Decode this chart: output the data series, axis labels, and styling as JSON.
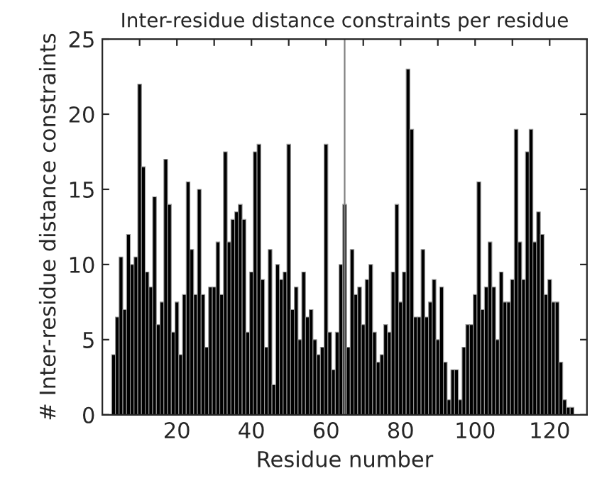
{
  "chart_data": {
    "type": "bar",
    "title": "Inter-residue distance constraints per residue",
    "xlabel": "Residue number",
    "ylabel": "# Inter-residue distance constraints",
    "x": [
      3,
      4,
      5,
      6,
      7,
      8,
      9,
      10,
      11,
      12,
      13,
      14,
      15,
      16,
      17,
      18,
      19,
      20,
      21,
      22,
      23,
      24,
      25,
      26,
      27,
      28,
      29,
      30,
      31,
      32,
      33,
      34,
      35,
      36,
      37,
      38,
      39,
      40,
      41,
      42,
      43,
      44,
      45,
      46,
      47,
      48,
      49,
      50,
      51,
      52,
      53,
      54,
      55,
      56,
      57,
      58,
      59,
      60,
      61,
      62,
      63,
      64,
      65,
      66,
      67,
      68,
      69,
      70,
      71,
      72,
      73,
      74,
      75,
      76,
      77,
      78,
      79,
      80,
      81,
      82,
      83,
      84,
      85,
      86,
      87,
      88,
      89,
      90,
      91,
      92,
      93,
      94,
      95,
      96,
      97,
      98,
      99,
      100,
      101,
      102,
      103,
      104,
      105,
      106,
      107,
      108,
      109,
      110,
      111,
      112,
      113,
      114,
      115,
      116,
      117,
      118,
      119,
      120,
      121,
      122,
      123,
      124,
      125,
      126
    ],
    "values": [
      4.0,
      6.5,
      10.5,
      7.0,
      12.0,
      10.0,
      10.5,
      22.0,
      16.5,
      9.5,
      8.5,
      14.5,
      6.0,
      7.5,
      17.0,
      14.0,
      5.5,
      7.5,
      4.0,
      8.0,
      15.5,
      11.0,
      8.0,
      15.0,
      8.0,
      4.5,
      8.5,
      8.5,
      11.5,
      8.0,
      17.5,
      11.5,
      13.0,
      13.5,
      14.0,
      13.0,
      5.5,
      9.5,
      17.5,
      18.0,
      9.0,
      4.5,
      11.0,
      2.0,
      10.0,
      9.0,
      9.5,
      18.0,
      7.0,
      8.5,
      5.0,
      9.5,
      6.5,
      7.0,
      5.0,
      4.0,
      4.5,
      18.0,
      5.5,
      3.0,
      5.5,
      10.0,
      14.0,
      4.5,
      11.0,
      8.0,
      8.5,
      6.0,
      9.0,
      10.0,
      5.5,
      3.5,
      4.0,
      6.0,
      5.5,
      9.5,
      14.0,
      7.5,
      9.5,
      23.0,
      19.0,
      6.5,
      6.5,
      11.0,
      6.5,
      7.5,
      9.0,
      5.0,
      8.5,
      3.5,
      1.0,
      3.0,
      3.0,
      1.0,
      4.5,
      6.0,
      6.0,
      8.0,
      15.5,
      7.0,
      8.5,
      11.5,
      8.5,
      5.0,
      9.5,
      7.5,
      7.5,
      9.0,
      19.0,
      11.5,
      9.0,
      17.5,
      19.0,
      11.5,
      13.5,
      12.0,
      8.0,
      9.0,
      7.5,
      7.5,
      3.5,
      1.0,
      0.5,
      0.5
    ],
    "color": "#000000",
    "xlim": [
      0,
      130
    ],
    "xticks": [
      {
        "value": 10,
        "label": null
      },
      20,
      {
        "value": 30,
        "label": null
      },
      40,
      {
        "value": 50,
        "label": null
      },
      60,
      {
        "value": 70,
        "label": null
      },
      80,
      {
        "value": 90,
        "label": null
      },
      100,
      {
        "value": 110,
        "label": null
      },
      120
    ],
    "ylim": [
      0,
      25
    ],
    "yticks": [
      0,
      5,
      10,
      15,
      20,
      25
    ],
    "ref_lines": [
      {
        "axis": "x",
        "value": 65,
        "color": "#808080"
      }
    ],
    "grid": false,
    "legend": false
  }
}
